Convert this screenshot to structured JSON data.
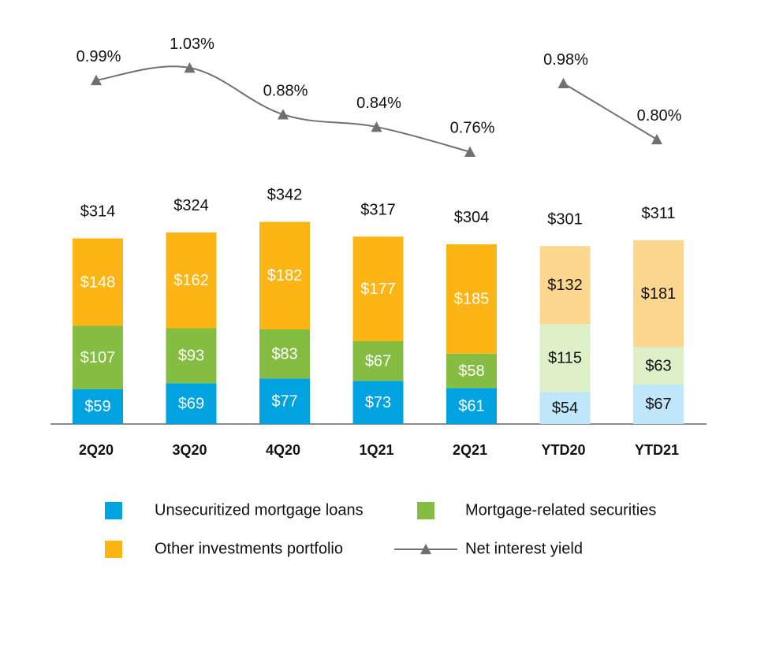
{
  "chart_data": {
    "type": "bar",
    "stacked": true,
    "categories": [
      "2Q20",
      "3Q20",
      "4Q20",
      "1Q21",
      "2Q21",
      "YTD20",
      "YTD21"
    ],
    "series": [
      {
        "name": "Unsecuritized mortgage loans",
        "values": [
          59,
          69,
          77,
          73,
          61,
          54,
          67
        ],
        "color": "#00A3E0",
        "light_color": "#BFE6FA"
      },
      {
        "name": "Mortgage-related securities",
        "values": [
          107,
          93,
          83,
          67,
          58,
          115,
          63
        ],
        "color": "#84BD41",
        "light_color": "#DDF0C8"
      },
      {
        "name": "Other investments portfolio",
        "values": [
          148,
          162,
          182,
          177,
          185,
          132,
          181
        ],
        "color": "#FDB515",
        "light_color": "#FDD78F"
      }
    ],
    "value_labels": [
      [
        "$59",
        "$69",
        "$77",
        "$73",
        "$61",
        "$54",
        "$67"
      ],
      [
        "$107",
        "$93",
        "$83",
        "$67",
        "$58",
        "$115",
        "$63"
      ],
      [
        "$148",
        "$162",
        "$182",
        "$177",
        "$185",
        "$132",
        "$181"
      ]
    ],
    "totals": [
      314,
      324,
      342,
      317,
      304,
      301,
      311
    ],
    "total_labels": [
      "$314",
      "$324",
      "$342",
      "$317",
      "$304",
      "$301",
      "$311"
    ],
    "light_categories": [
      "YTD20",
      "YTD21"
    ],
    "line": {
      "name": "Net interest yield",
      "marker": "triangle",
      "color": "#707070",
      "segments": [
        {
          "categories": [
            "2Q20",
            "3Q20",
            "4Q20",
            "1Q21",
            "2Q21"
          ],
          "values": [
            0.99,
            1.03,
            0.88,
            0.84,
            0.76
          ],
          "labels": [
            "0.99%",
            "1.03%",
            "0.88%",
            "0.84%",
            "0.76%"
          ]
        },
        {
          "categories": [
            "YTD20",
            "YTD21"
          ],
          "values": [
            0.98,
            0.8
          ],
          "labels": [
            "0.98%",
            "0.80%"
          ]
        }
      ]
    },
    "legend": {
      "placement": "bottom",
      "items": [
        {
          "label": "Unsecuritized mortgage loans",
          "kind": "box",
          "color": "#00A3E0"
        },
        {
          "label": "Mortgage-related securities",
          "kind": "box",
          "color": "#84BD41"
        },
        {
          "label": "Other investments portfolio",
          "kind": "box",
          "color": "#FDB515"
        },
        {
          "label": "Net interest yield",
          "kind": "line-triangle",
          "color": "#707070"
        }
      ]
    },
    "axis_color": "#8C8C8C",
    "grid": false
  }
}
